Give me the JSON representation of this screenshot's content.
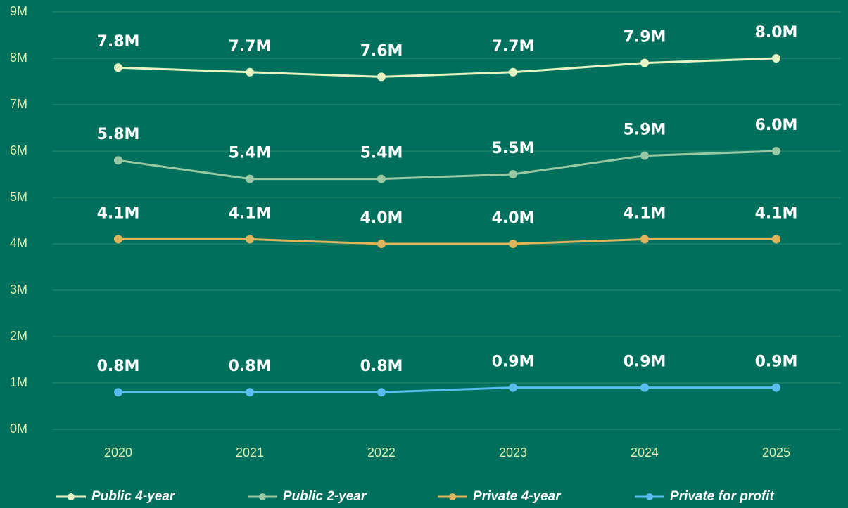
{
  "chart_data": {
    "type": "line",
    "categories": [
      "2020",
      "2021",
      "2022",
      "2023",
      "2024",
      "2025"
    ],
    "series": [
      {
        "name": "Public 4-year",
        "color": "#e6f4c4",
        "values": [
          7.8,
          7.7,
          7.6,
          7.7,
          7.9,
          8.0
        ],
        "value_labels": [
          "7.8M",
          "7.7M",
          "7.6M",
          "7.7M",
          "7.9M",
          "8.0M"
        ]
      },
      {
        "name": "Public 2-year",
        "color": "#9ac8a4",
        "values": [
          5.8,
          5.4,
          5.4,
          5.5,
          5.9,
          6.0
        ],
        "value_labels": [
          "5.8M",
          "5.4M",
          "5.4M",
          "5.5M",
          "5.9M",
          "6.0M"
        ]
      },
      {
        "name": "Private 4-year",
        "color": "#e0b45a",
        "values": [
          4.1,
          4.1,
          4.0,
          4.0,
          4.1,
          4.1
        ],
        "value_labels": [
          "4.1M",
          "4.1M",
          "4.0M",
          "4.0M",
          "4.1M",
          "4.1M"
        ]
      },
      {
        "name": "Private for profit",
        "color": "#5bbcf0",
        "values": [
          0.8,
          0.8,
          0.8,
          0.9,
          0.9,
          0.9
        ],
        "value_labels": [
          "0.8M",
          "0.8M",
          "0.8M",
          "0.9M",
          "0.9M",
          "0.9M"
        ]
      }
    ],
    "ylim": [
      0,
      9
    ],
    "yticks": [
      {
        "value": 0,
        "label": "0M"
      },
      {
        "value": 1,
        "label": "1M"
      },
      {
        "value": 2,
        "label": "2M"
      },
      {
        "value": 3,
        "label": "3M"
      },
      {
        "value": 4,
        "label": "4M"
      },
      {
        "value": 5,
        "label": "5M"
      },
      {
        "value": 6,
        "label": "6M"
      },
      {
        "value": 7,
        "label": "7M"
      },
      {
        "value": 8,
        "label": "8M"
      },
      {
        "value": 9,
        "label": "9M"
      }
    ],
    "grid": true,
    "legend": "bottom"
  }
}
